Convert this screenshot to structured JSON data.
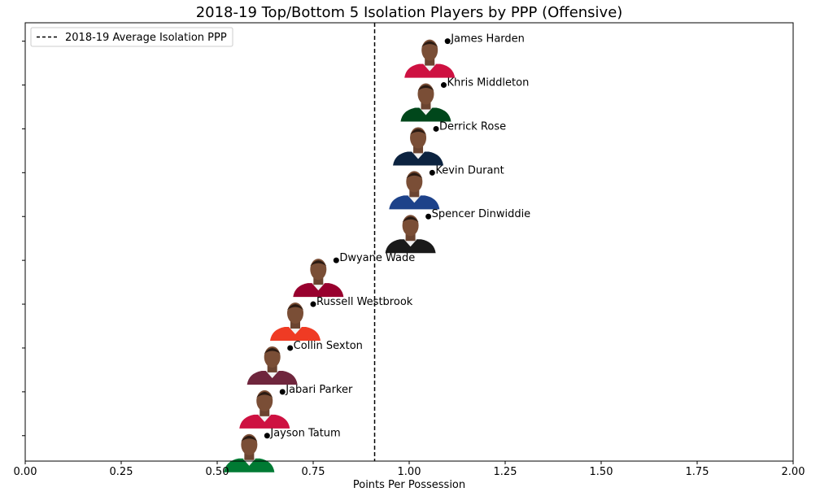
{
  "chart_data": {
    "type": "scatter",
    "title": "2018-19 Top/Bottom 5 Isolation Players by PPP (Offensive)",
    "xlabel": "Points Per Possession",
    "ylabel": "",
    "xlim": [
      0,
      2
    ],
    "xticks": [
      "0.00",
      "0.25",
      "0.50",
      "0.75",
      "1.00",
      "1.25",
      "1.50",
      "1.75",
      "2.00"
    ],
    "grid": false,
    "legend": {
      "placement": "top-left",
      "entries": [
        {
          "label": "2018-19 Average Isolation PPP",
          "style": "dashed-line",
          "color": "#000000"
        }
      ]
    },
    "reference_line": {
      "label": "2018-19 Average Isolation PPP",
      "x": 0.91
    },
    "points": [
      {
        "player": "James Harden",
        "ppp": 1.1,
        "jersey_color": "#ce1141"
      },
      {
        "player": "Khris Middleton",
        "ppp": 1.09,
        "jersey_color": "#00471b"
      },
      {
        "player": "Derrick Rose",
        "ppp": 1.07,
        "jersey_color": "#0c2340"
      },
      {
        "player": "Kevin Durant",
        "ppp": 1.06,
        "jersey_color": "#1d428a"
      },
      {
        "player": "Spencer Dinwiddie",
        "ppp": 1.05,
        "jersey_color": "#1a1a1a"
      },
      {
        "player": "Dwyane Wade",
        "ppp": 0.81,
        "jersey_color": "#98002e"
      },
      {
        "player": "Russell Westbrook",
        "ppp": 0.75,
        "jersey_color": "#ef3b24"
      },
      {
        "player": "Collin Sexton",
        "ppp": 0.69,
        "jersey_color": "#6f263d"
      },
      {
        "player": "Jabari Parker",
        "ppp": 0.67,
        "jersey_color": "#ce1141"
      },
      {
        "player": "Jayson Tatum",
        "ppp": 0.63,
        "jersey_color": "#007a33"
      }
    ]
  }
}
